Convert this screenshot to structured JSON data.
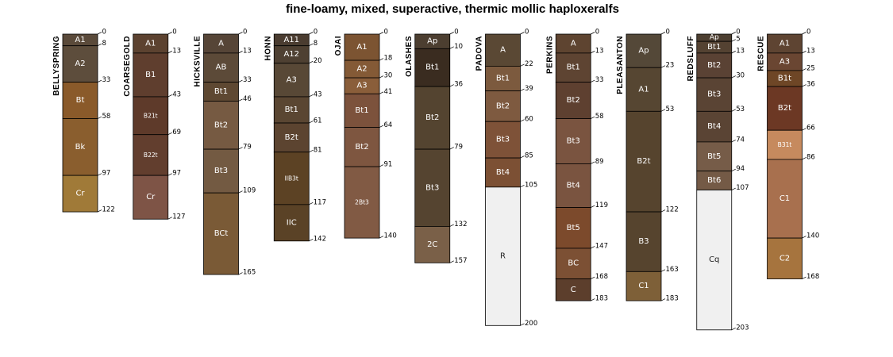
{
  "chart_data": {
    "type": "soil-profile",
    "title": "fine-loamy, mixed, superactive, thermic mollic haploxeralfs",
    "depth_max": 203,
    "profiles": [
      {
        "name": "BELLYSPRING",
        "horizons": [
          {
            "name": "A1",
            "top": 0,
            "bottom": 8,
            "color": "#5a4a3a"
          },
          {
            "name": "A2",
            "top": 8,
            "bottom": 33,
            "color": "#5d4d3c"
          },
          {
            "name": "Bt",
            "top": 33,
            "bottom": 58,
            "color": "#8a5a2a"
          },
          {
            "name": "Bk",
            "top": 58,
            "bottom": 97,
            "color": "#8a5e2e"
          },
          {
            "name": "Cr",
            "top": 97,
            "bottom": 122,
            "color": "#a07a38"
          }
        ]
      },
      {
        "name": "COARSEGOLD",
        "horizons": [
          {
            "name": "A1",
            "top": 0,
            "bottom": 13,
            "color": "#5c4230"
          },
          {
            "name": "B1",
            "top": 13,
            "bottom": 43,
            "color": "#5f3e2e"
          },
          {
            "name": "B21t",
            "top": 43,
            "bottom": 69,
            "color": "#5e3a2a"
          },
          {
            "name": "B22t",
            "top": 69,
            "bottom": 97,
            "color": "#623e2e"
          },
          {
            "name": "Cr",
            "top": 97,
            "bottom": 127,
            "color": "#7e5446"
          }
        ]
      },
      {
        "name": "HICKSVILLE",
        "horizons": [
          {
            "name": "A",
            "top": 0,
            "bottom": 13,
            "color": "#564537"
          },
          {
            "name": "AB",
            "top": 13,
            "bottom": 33,
            "color": "#5c4a38"
          },
          {
            "name": "Bt1",
            "top": 33,
            "bottom": 46,
            "color": "#5e4832"
          },
          {
            "name": "Bt2",
            "top": 46,
            "bottom": 79,
            "color": "#765a42"
          },
          {
            "name": "Bt3",
            "top": 79,
            "bottom": 109,
            "color": "#735a42"
          },
          {
            "name": "BCt",
            "top": 109,
            "bottom": 165,
            "color": "#7a5a36"
          }
        ]
      },
      {
        "name": "HONN",
        "horizons": [
          {
            "name": "A11",
            "top": 0,
            "bottom": 8,
            "color": "#4a3c30"
          },
          {
            "name": "A12",
            "top": 8,
            "bottom": 20,
            "color": "#4e4032"
          },
          {
            "name": "A3",
            "top": 20,
            "bottom": 43,
            "color": "#584836"
          },
          {
            "name": "Bt1",
            "top": 43,
            "bottom": 61,
            "color": "#5a4632"
          },
          {
            "name": "B2t",
            "top": 61,
            "bottom": 81,
            "color": "#5c4430"
          },
          {
            "name": "IIB3t",
            "top": 81,
            "bottom": 117,
            "color": "#5c4224"
          },
          {
            "name": "IIC",
            "top": 117,
            "bottom": 142,
            "color": "#5a4226"
          }
        ]
      },
      {
        "name": "OJAI",
        "horizons": [
          {
            "name": "A1",
            "top": 0,
            "bottom": 18,
            "color": "#7c5432"
          },
          {
            "name": "A2",
            "top": 18,
            "bottom": 30,
            "color": "#845a36"
          },
          {
            "name": "A3",
            "top": 30,
            "bottom": 41,
            "color": "#8a5e3a"
          },
          {
            "name": "Bt1",
            "top": 41,
            "bottom": 64,
            "color": "#7c523c"
          },
          {
            "name": "Bt2",
            "top": 64,
            "bottom": 91,
            "color": "#7e5640"
          },
          {
            "name": "2Bt3",
            "top": 91,
            "bottom": 140,
            "color": "#815a44"
          }
        ]
      },
      {
        "name": "OLASHES",
        "horizons": [
          {
            "name": "Ap",
            "top": 0,
            "bottom": 10,
            "color": "#4c3e30"
          },
          {
            "name": "Bt1",
            "top": 10,
            "bottom": 36,
            "color": "#3a2c20"
          },
          {
            "name": "Bt2",
            "top": 36,
            "bottom": 79,
            "color": "#544430"
          },
          {
            "name": "Bt3",
            "top": 79,
            "bottom": 132,
            "color": "#554430"
          },
          {
            "name": "2C",
            "top": 132,
            "bottom": 157,
            "color": "#7a6048"
          }
        ]
      },
      {
        "name": "PADOVA",
        "horizons": [
          {
            "name": "A",
            "top": 0,
            "bottom": 22,
            "color": "#5a4834"
          },
          {
            "name": "Bt1",
            "top": 22,
            "bottom": 39,
            "color": "#7c5a3e"
          },
          {
            "name": "Bt2",
            "top": 39,
            "bottom": 60,
            "color": "#7e5a40"
          },
          {
            "name": "Bt3",
            "top": 60,
            "bottom": 85,
            "color": "#7e5238"
          },
          {
            "name": "Bt4",
            "top": 85,
            "bottom": 105,
            "color": "#7c5034"
          },
          {
            "name": "R",
            "top": 105,
            "bottom": 200,
            "color": "#f0f0f0"
          }
        ]
      },
      {
        "name": "PERKINS",
        "horizons": [
          {
            "name": "A",
            "top": 0,
            "bottom": 13,
            "color": "#5e4430"
          },
          {
            "name": "Bt1",
            "top": 13,
            "bottom": 33,
            "color": "#5e4432"
          },
          {
            "name": "Bt2",
            "top": 33,
            "bottom": 58,
            "color": "#5e4030"
          },
          {
            "name": "Bt3",
            "top": 58,
            "bottom": 89,
            "color": "#7a5440"
          },
          {
            "name": "Bt4",
            "top": 89,
            "bottom": 119,
            "color": "#7a5440"
          },
          {
            "name": "Bt5",
            "top": 119,
            "bottom": 147,
            "color": "#7c4a2c"
          },
          {
            "name": "BC",
            "top": 147,
            "bottom": 168,
            "color": "#7c5034"
          },
          {
            "name": "C",
            "top": 168,
            "bottom": 183,
            "color": "#5c3e2c"
          }
        ]
      },
      {
        "name": "PLEASANTON",
        "horizons": [
          {
            "name": "Ap",
            "top": 0,
            "bottom": 23,
            "color": "#544838"
          },
          {
            "name": "A1",
            "top": 23,
            "bottom": 53,
            "color": "#564632"
          },
          {
            "name": "B2t",
            "top": 53,
            "bottom": 122,
            "color": "#56442e"
          },
          {
            "name": "B3",
            "top": 122,
            "bottom": 163,
            "color": "#56442e"
          },
          {
            "name": "C1",
            "top": 163,
            "bottom": 183,
            "color": "#7e6038"
          }
        ]
      },
      {
        "name": "REDSLUFF",
        "horizons": [
          {
            "name": "Ap",
            "top": 0,
            "bottom": 5,
            "color": "#4c3e30"
          },
          {
            "name": "Bt1",
            "top": 5,
            "bottom": 13,
            "color": "#544232"
          },
          {
            "name": "Bt2",
            "top": 13,
            "bottom": 30,
            "color": "#5a4234"
          },
          {
            "name": "Bt3",
            "top": 30,
            "bottom": 53,
            "color": "#5a4434"
          },
          {
            "name": "Bt4",
            "top": 53,
            "bottom": 74,
            "color": "#5a4434"
          },
          {
            "name": "Bt5",
            "top": 74,
            "bottom": 94,
            "color": "#765c48"
          },
          {
            "name": "Bt6",
            "top": 94,
            "bottom": 107,
            "color": "#745a46"
          },
          {
            "name": "Cq",
            "top": 107,
            "bottom": 203,
            "color": "#f0f0f0"
          }
        ]
      },
      {
        "name": "RESCUE",
        "horizons": [
          {
            "name": "A1",
            "top": 0,
            "bottom": 13,
            "color": "#5e4432"
          },
          {
            "name": "A3",
            "top": 13,
            "bottom": 25,
            "color": "#6a4632"
          },
          {
            "name": "B1t",
            "top": 25,
            "bottom": 36,
            "color": "#6e4626"
          },
          {
            "name": "B2t",
            "top": 36,
            "bottom": 66,
            "color": "#6c3824"
          },
          {
            "name": "B31t",
            "top": 66,
            "bottom": 86,
            "color": "#c68a5e"
          },
          {
            "name": "C1",
            "top": 86,
            "bottom": 140,
            "color": "#a8704e"
          },
          {
            "name": "C2",
            "top": 140,
            "bottom": 168,
            "color": "#a6743e"
          }
        ]
      }
    ]
  }
}
